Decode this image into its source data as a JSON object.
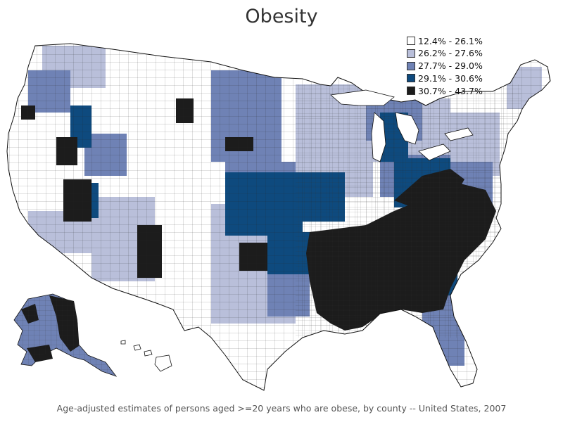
{
  "title": "Obesity",
  "legend": {
    "items": [
      {
        "label": "12.4% - 26.1%",
        "color": "#ffffff"
      },
      {
        "label": "26.2% - 27.6%",
        "color": "#b9bfda"
      },
      {
        "label": "27.7% - 29.0%",
        "color": "#6f82b5"
      },
      {
        "label": "29.1% - 30.6%",
        "color": "#0e4a7e"
      },
      {
        "label": "30.7% - 43.7%",
        "color": "#1c1c1c"
      }
    ]
  },
  "caption": "Age-adjusted estimates  of persons aged >=20 years who are obese, by county -- United States, 2007",
  "map": {
    "region": "United States (contiguous states, Alaska, Hawaii)",
    "unit": "county",
    "regional_pattern": {
      "highest_class_concentration": [
        "Southeast",
        "Mississippi Delta",
        "Appalachia"
      ],
      "lowest_class_concentration": [
        "Mountain West",
        "Colorado",
        "Utah",
        "Montana",
        "New England"
      ]
    }
  }
}
